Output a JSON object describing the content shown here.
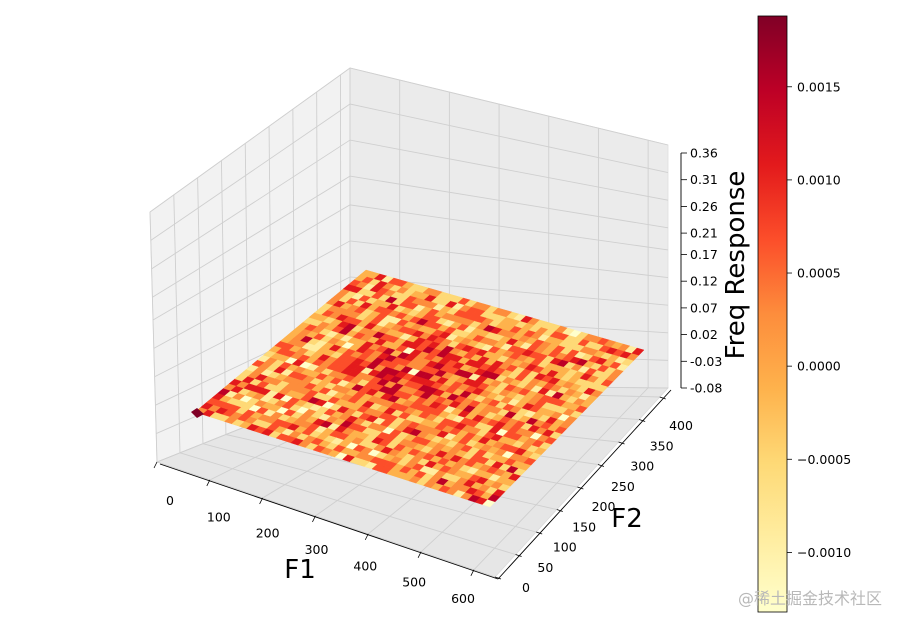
{
  "chart_data": {
    "type": "surface3d",
    "title": "",
    "xlabel": "F1",
    "ylabel": "F2",
    "zlabel": "Freq Response",
    "x_ticks": [
      "0",
      "100",
      "200",
      "300",
      "400",
      "500",
      "600"
    ],
    "y_ticks": [
      "0",
      "50",
      "100",
      "150",
      "200",
      "250",
      "300",
      "350",
      "400"
    ],
    "z_ticks": [
      "-0.08",
      "-0.03",
      "0.02",
      "0.07",
      "0.12",
      "0.17",
      "0.21",
      "0.26",
      "0.31",
      "0.36"
    ],
    "xlim": [
      0,
      640
    ],
    "ylim": [
      0,
      420
    ],
    "zlim": [
      -0.08,
      0.36
    ],
    "surface_z_approx": 0.0,
    "colormap": "YlOrRd",
    "colormap_colors": [
      "#ffffcc",
      "#ffeda0",
      "#fed976",
      "#feb24c",
      "#fd8d3c",
      "#fc4e2a",
      "#e31a1c",
      "#bd0026",
      "#800026"
    ],
    "colorbar": {
      "range": [
        -0.00132,
        0.00188
      ],
      "ticks": [
        "0.0015",
        "0.0010",
        "0.0005",
        "0.0000",
        "−0.0005",
        "−0.0010"
      ],
      "tick_values": [
        0.0015,
        0.001,
        0.0005,
        0.0,
        -0.0005,
        -0.001
      ]
    },
    "grid": true
  },
  "watermark": "@稀土掘金技术社区"
}
